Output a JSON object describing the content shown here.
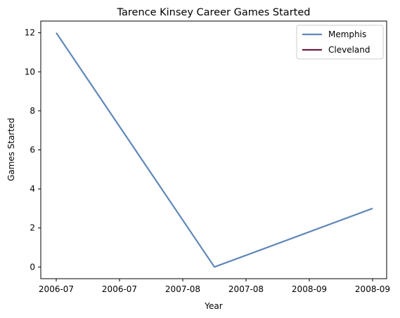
{
  "chart_data": {
    "type": "line",
    "title": "Tarence Kinsey Career Games Started",
    "xlabel": "Year",
    "ylabel": "Games Started",
    "x_tick_labels": [
      "2006-07",
      "2006-07",
      "2007-08",
      "2007-08",
      "2008-09",
      "2008-09"
    ],
    "y_ticks": [
      0,
      2,
      4,
      6,
      8,
      10,
      12
    ],
    "ylim": [
      -0.6,
      12.6
    ],
    "grid": false,
    "legend_position": "top-right",
    "series": [
      {
        "name": "Memphis",
        "color": "#5f87b9",
        "x": [
          "2006-07",
          "2007-08",
          "2008-09"
        ],
        "values": [
          12,
          0,
          3
        ]
      },
      {
        "name": "Cleveland",
        "color": "#6b1f3f",
        "x": [],
        "values": []
      }
    ]
  }
}
